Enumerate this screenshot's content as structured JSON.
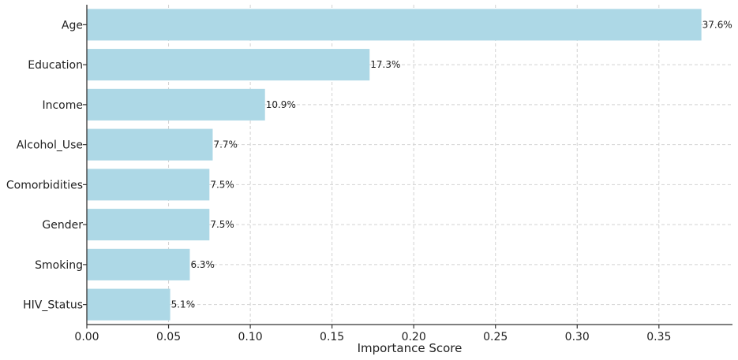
{
  "chart_data": {
    "type": "bar",
    "orientation": "horizontal",
    "categories": [
      "Age",
      "Education",
      "Income",
      "Alcohol_Use",
      "Comorbidities",
      "Gender",
      "Smoking",
      "HIV_Status"
    ],
    "values": [
      0.376,
      0.173,
      0.109,
      0.077,
      0.075,
      0.075,
      0.063,
      0.051
    ],
    "data_labels": [
      "37.6%",
      "17.3%",
      "10.9%",
      "7.7%",
      "7.5%",
      "7.5%",
      "6.3%",
      "5.1%"
    ],
    "xlabel": "Importance Score",
    "ylabel": "",
    "title": "",
    "xlim": [
      0,
      0.395
    ],
    "xticks": [
      0.0,
      0.05,
      0.1,
      0.15,
      0.2,
      0.25,
      0.3,
      0.35
    ],
    "xtick_labels": [
      "0.00",
      "0.05",
      "0.10",
      "0.15",
      "0.20",
      "0.25",
      "0.30",
      "0.35"
    ],
    "grid": true,
    "bar_color": "#add8e6"
  }
}
